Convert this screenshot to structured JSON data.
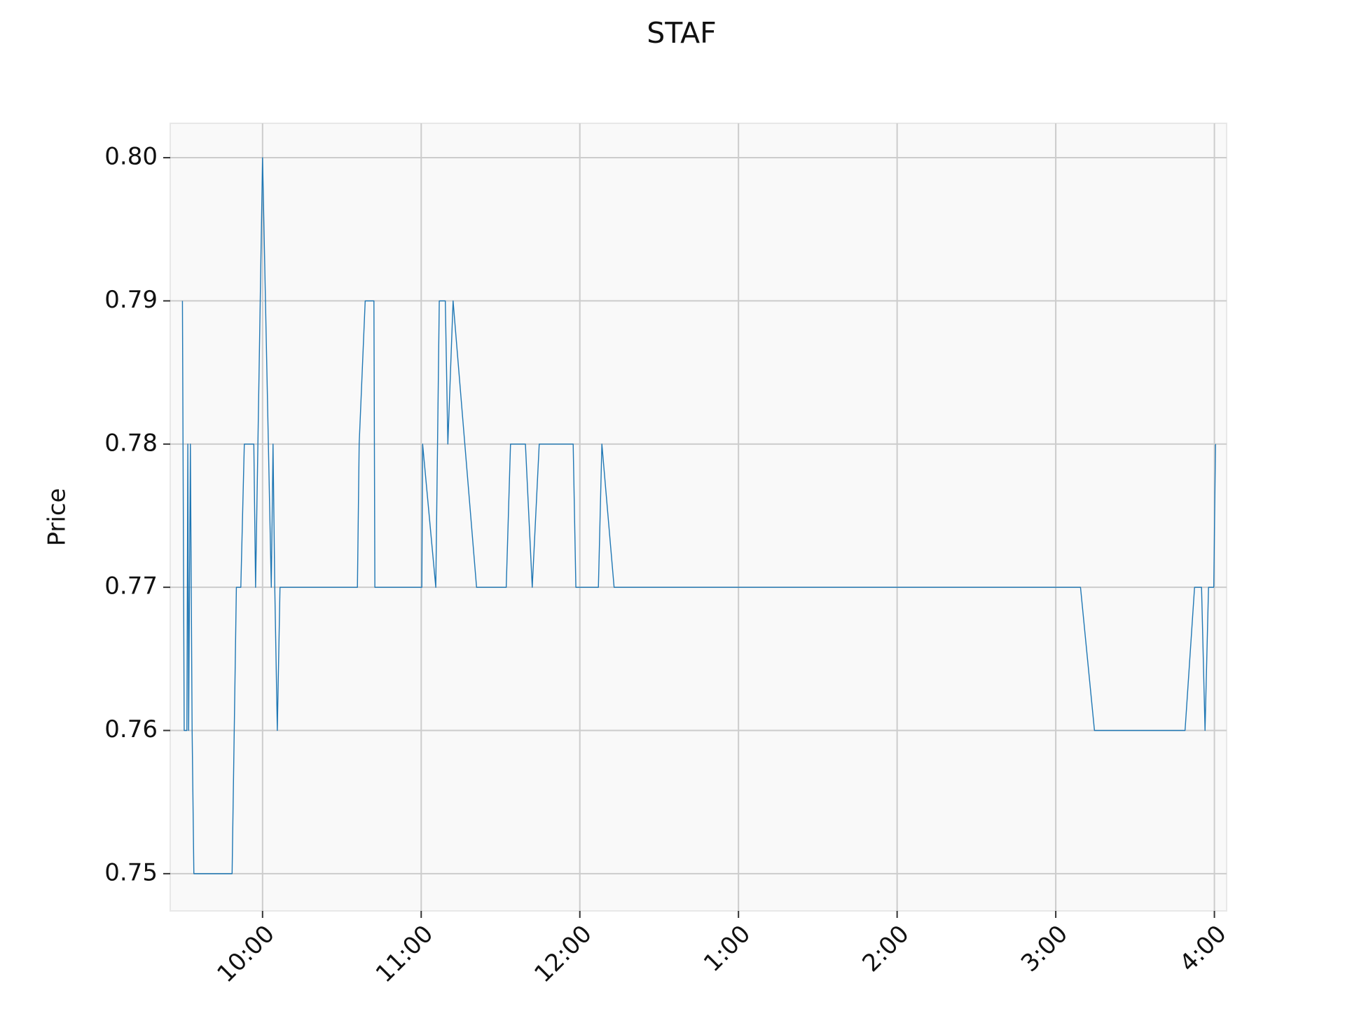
{
  "chart_data": {
    "type": "line",
    "title": "STAF",
    "y_label": "Price",
    "x": [
      9.495,
      9.506,
      9.523,
      9.529,
      9.534,
      9.545,
      9.556,
      9.567,
      9.808,
      9.835,
      9.863,
      9.885,
      9.945,
      9.956,
      10.0,
      10.055,
      10.066,
      10.077,
      10.093,
      10.11,
      10.598,
      10.609,
      10.647,
      10.702,
      10.708,
      11.004,
      11.009,
      11.092,
      11.114,
      11.152,
      11.168,
      11.201,
      11.349,
      11.536,
      11.563,
      11.657,
      11.7,
      11.744,
      11.958,
      11.975,
      12.117,
      12.139,
      12.216,
      15.156,
      15.244,
      15.815,
      15.875,
      15.919,
      15.941,
      15.963,
      15.996,
      16.007
    ],
    "values": [
      0.79,
      0.76,
      0.76,
      0.78,
      0.76,
      0.78,
      0.76,
      0.75,
      0.75,
      0.77,
      0.77,
      0.78,
      0.78,
      0.77,
      0.8,
      0.77,
      0.78,
      0.77,
      0.76,
      0.77,
      0.77,
      0.78,
      0.79,
      0.79,
      0.77,
      0.77,
      0.78,
      0.77,
      0.79,
      0.79,
      0.78,
      0.79,
      0.77,
      0.77,
      0.78,
      0.78,
      0.77,
      0.78,
      0.78,
      0.77,
      0.77,
      0.78,
      0.77,
      0.77,
      0.76,
      0.76,
      0.77,
      0.77,
      0.76,
      0.77,
      0.77,
      0.78
    ],
    "color": "#1f77b4",
    "xlim": [
      9.418,
      16.077
    ],
    "xticks": [
      {
        "value": 10,
        "label": "10:00"
      },
      {
        "value": 11,
        "label": "11:00"
      },
      {
        "value": 12,
        "label": "12:00"
      },
      {
        "value": 13,
        "label": "1:00"
      },
      {
        "value": 14,
        "label": "2:00"
      },
      {
        "value": 15,
        "label": "3:00"
      },
      {
        "value": 16,
        "label": "4:00"
      }
    ],
    "ylim": [
      0.7474,
      0.8024
    ],
    "yticks": [
      {
        "value": 0.75,
        "label": "0.75"
      },
      {
        "value": 0.76,
        "label": "0.76"
      },
      {
        "value": 0.77,
        "label": "0.77"
      },
      {
        "value": 0.78,
        "label": "0.78"
      },
      {
        "value": 0.79,
        "label": "0.79"
      },
      {
        "value": 0.8,
        "label": "0.80"
      }
    ],
    "grid": true
  }
}
